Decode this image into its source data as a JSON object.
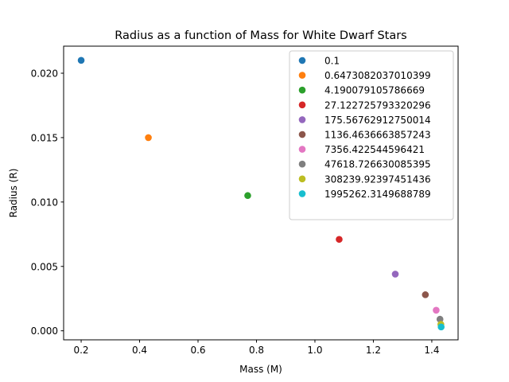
{
  "chart_data": {
    "type": "scatter",
    "title": "Radius as a function of Mass for White Dwarf Stars",
    "xlabel": "Mass (M)",
    "ylabel": "Radius (R)",
    "xlim": [
      0.14,
      1.49
    ],
    "ylim": [
      -0.0007,
      0.0221
    ],
    "xticks": [
      0.2,
      0.4,
      0.6,
      0.8,
      1.0,
      1.2,
      1.4
    ],
    "xtick_labels": [
      "0.2",
      "0.4",
      "0.6",
      "0.8",
      "1.0",
      "1.2",
      "1.4"
    ],
    "yticks": [
      0.0,
      0.005,
      0.01,
      0.015,
      0.02
    ],
    "ytick_labels": [
      "0.000",
      "0.005",
      "0.010",
      "0.015",
      "0.020"
    ],
    "grid": false,
    "legend_position": "top-right",
    "series": [
      {
        "name": "0.1",
        "color": "#1f77b4",
        "x": [
          0.2
        ],
        "y": [
          0.021
        ]
      },
      {
        "name": "0.6473082037010399",
        "color": "#ff7f0e",
        "x": [
          0.43
        ],
        "y": [
          0.015
        ]
      },
      {
        "name": "4.190079105786669",
        "color": "#2ca02c",
        "x": [
          0.77
        ],
        "y": [
          0.0105
        ]
      },
      {
        "name": "27.122725793320296",
        "color": "#d62728",
        "x": [
          1.083
        ],
        "y": [
          0.0071
        ]
      },
      {
        "name": "175.56762912750014",
        "color": "#9467bd",
        "x": [
          1.275
        ],
        "y": [
          0.0044
        ]
      },
      {
        "name": "1136.4636663857243",
        "color": "#8c564b",
        "x": [
          1.378
        ],
        "y": [
          0.0028
        ]
      },
      {
        "name": "7356.422544596421",
        "color": "#e377c2",
        "x": [
          1.415
        ],
        "y": [
          0.0016
        ]
      },
      {
        "name": "47618.726630085395",
        "color": "#7f7f7f",
        "x": [
          1.428
        ],
        "y": [
          0.0009
        ]
      },
      {
        "name": "308239.92397451436",
        "color": "#bcbd22",
        "x": [
          1.431
        ],
        "y": [
          0.0005
        ]
      },
      {
        "name": "1995262.3149688789",
        "color": "#17becf",
        "x": [
          1.432
        ],
        "y": [
          0.0003
        ]
      }
    ]
  }
}
